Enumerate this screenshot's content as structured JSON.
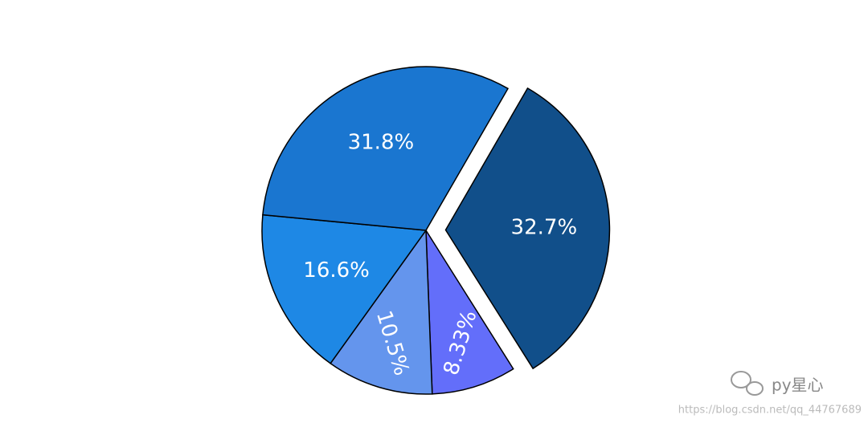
{
  "chart_data": {
    "type": "pie",
    "values": [
      32.7,
      8.33,
      10.5,
      16.6,
      31.8
    ],
    "value_labels": [
      "32.7%",
      "8.33%",
      "10.5%",
      "16.6%",
      "31.8%"
    ],
    "colors": [
      "#114f8a",
      "#636efa",
      "#6495ed",
      "#1e88e5",
      "#1a76d0"
    ],
    "pull": [
      0.12,
      0,
      0,
      0,
      0
    ],
    "rotation": 30,
    "direction": "clockwise"
  },
  "watermark": {
    "brand": "py星心",
    "url": "https://blog.csdn.net/qq_44767689"
  }
}
